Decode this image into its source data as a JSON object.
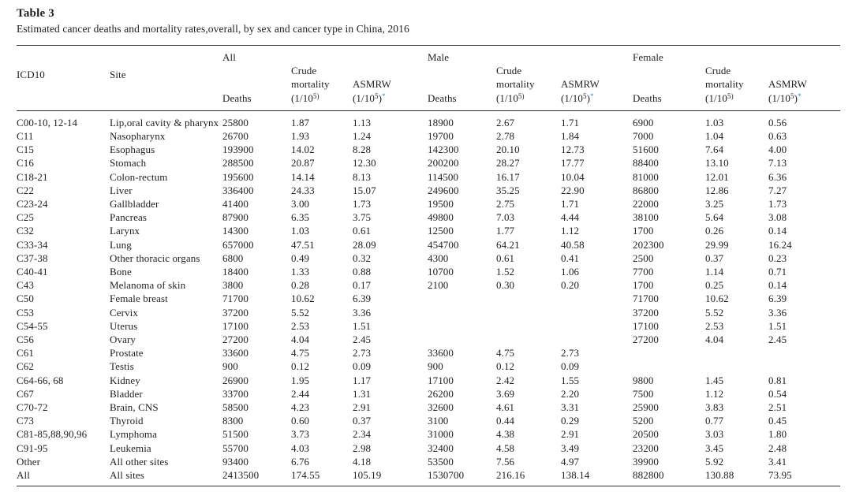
{
  "page": {
    "title": "Table 3",
    "subtitle": "Estimated cancer deaths and mortality rates,overall, by sex and cancer type in China, 2016"
  },
  "colors": {
    "text": "#1f1f1f",
    "rule": "#2e2e2e",
    "asterisk_accent": "#2e98a6"
  },
  "table": {
    "groups": [
      "All",
      "Male",
      "Female"
    ],
    "headers": {
      "icd10": "ICD10",
      "site": "Site",
      "deaths": "Deaths",
      "crude_line1": "Crude",
      "crude_line2": "mortality",
      "unit_pre": "(1/10",
      "crude_unit_sup": "5)",
      "asmrw": "ASMRW",
      "asmrw_unit_sup": "5",
      "close_paren": ")",
      "star": "*"
    },
    "rows": [
      {
        "cells": [
          "C00-10, 12-14",
          "Lip,oral cavity & pharynx",
          "25800",
          "1.87",
          "1.13",
          "18900",
          "2.67",
          "1.71",
          "6900",
          "1.03",
          "0.56"
        ]
      },
      {
        "cells": [
          "C11",
          "Nasopharynx",
          "26700",
          "1.93",
          "1.24",
          "19700",
          "2.78",
          "1.84",
          "7000",
          "1.04",
          "0.63"
        ]
      },
      {
        "cells": [
          "C15",
          "Esophagus",
          "193900",
          "14.02",
          "8.28",
          "142300",
          "20.10",
          "12.73",
          "51600",
          "7.64",
          "4.00"
        ]
      },
      {
        "cells": [
          "C16",
          "Stomach",
          "288500",
          "20.87",
          "12.30",
          "200200",
          "28.27",
          "17.77",
          "88400",
          "13.10",
          "7.13"
        ]
      },
      {
        "cells": [
          "C18-21",
          "Colon-rectum",
          "195600",
          "14.14",
          "8.13",
          "114500",
          "16.17",
          "10.04",
          "81000",
          "12.01",
          "6.36"
        ]
      },
      {
        "cells": [
          "C22",
          "Liver",
          "336400",
          "24.33",
          "15.07",
          "249600",
          "35.25",
          "22.90",
          "86800",
          "12.86",
          "7.27"
        ]
      },
      {
        "cells": [
          "C23-24",
          "Gallbladder",
          "41400",
          "3.00",
          "1.73",
          "19500",
          "2.75",
          "1.71",
          "22000",
          "3.25",
          "1.73"
        ]
      },
      {
        "cells": [
          "C25",
          "Pancreas",
          "87900",
          "6.35",
          "3.75",
          "49800",
          "7.03",
          "4.44",
          "38100",
          "5.64",
          "3.08"
        ]
      },
      {
        "cells": [
          "C32",
          "Larynx",
          "14300",
          "1.03",
          "0.61",
          "12500",
          "1.77",
          "1.12",
          "1700",
          "0.26",
          "0.14"
        ]
      },
      {
        "cells": [
          "C33-34",
          "Lung",
          "657000",
          "47.51",
          "28.09",
          "454700",
          "64.21",
          "40.58",
          "202300",
          "29.99",
          "16.24"
        ]
      },
      {
        "cells": [
          "C37-38",
          "Other thoracic organs",
          "6800",
          "0.49",
          "0.32",
          "4300",
          "0.61",
          "0.41",
          "2500",
          "0.37",
          "0.23"
        ]
      },
      {
        "cells": [
          "C40-41",
          "Bone",
          "18400",
          "1.33",
          "0.88",
          "10700",
          "1.52",
          "1.06",
          "7700",
          "1.14",
          "0.71"
        ]
      },
      {
        "cells": [
          "C43",
          "Melanoma of skin",
          "3800",
          "0.28",
          "0.17",
          "2100",
          "0.30",
          "0.20",
          "1700",
          "0.25",
          "0.14"
        ]
      },
      {
        "cells": [
          "C50",
          "Female breast",
          "71700",
          "10.62",
          "6.39",
          "",
          "",
          "",
          "71700",
          "10.62",
          "6.39"
        ]
      },
      {
        "cells": [
          "C53",
          "Cervix",
          "37200",
          "5.52",
          "3.36",
          "",
          "",
          "",
          "37200",
          "5.52",
          "3.36"
        ]
      },
      {
        "cells": [
          "C54-55",
          "Uterus",
          "17100",
          "2.53",
          "1.51",
          "",
          "",
          "",
          "17100",
          "2.53",
          "1.51"
        ]
      },
      {
        "cells": [
          "C56",
          "Ovary",
          "27200",
          "4.04",
          "2.45",
          "",
          "",
          "",
          "27200",
          "4.04",
          "2.45"
        ]
      },
      {
        "cells": [
          "C61",
          "Prostate",
          "33600",
          "4.75",
          "2.73",
          "33600",
          "4.75",
          "2.73",
          "",
          "",
          ""
        ]
      },
      {
        "cells": [
          "C62",
          "Testis",
          "900",
          "0.12",
          "0.09",
          "900",
          "0.12",
          "0.09",
          "",
          "",
          ""
        ]
      },
      {
        "cells": [
          "C64-66, 68",
          "Kidney",
          "26900",
          "1.95",
          "1.17",
          "17100",
          "2.42",
          "1.55",
          "9800",
          "1.45",
          "0.81"
        ]
      },
      {
        "cells": [
          "C67",
          "Bladder",
          "33700",
          "2.44",
          "1.31",
          "26200",
          "3.69",
          "2.20",
          "7500",
          "1.12",
          "0.54"
        ]
      },
      {
        "cells": [
          "C70-72",
          "Brain, CNS",
          "58500",
          "4.23",
          "2.91",
          "32600",
          "4.61",
          "3.31",
          "25900",
          "3.83",
          "2.51"
        ]
      },
      {
        "cells": [
          "C73",
          "Thyroid",
          "8300",
          "0.60",
          "0.37",
          "3100",
          "0.44",
          "0.29",
          "5200",
          "0.77",
          "0.45"
        ]
      },
      {
        "cells": [
          "C81-85,88,90,96",
          "Lymphoma",
          "51500",
          "3.73",
          "2.34",
          "31000",
          "4.38",
          "2.91",
          "20500",
          "3.03",
          "1.80"
        ]
      },
      {
        "cells": [
          "C91-95",
          "Leukemia",
          "55700",
          "4.03",
          "2.98",
          "32400",
          "4.58",
          "3.49",
          "23200",
          "3.45",
          "2.48"
        ]
      },
      {
        "cells": [
          "Other",
          "All other sites",
          "93400",
          "6.76",
          "4.18",
          "53500",
          "7.56",
          "4.97",
          "39900",
          "5.92",
          "3.41"
        ]
      },
      {
        "cells": [
          "All",
          "All sites",
          "2413500",
          "174.55",
          "105.19",
          "1530700",
          "216.16",
          "138.14",
          "882800",
          "130.88",
          "73.95"
        ]
      }
    ]
  }
}
